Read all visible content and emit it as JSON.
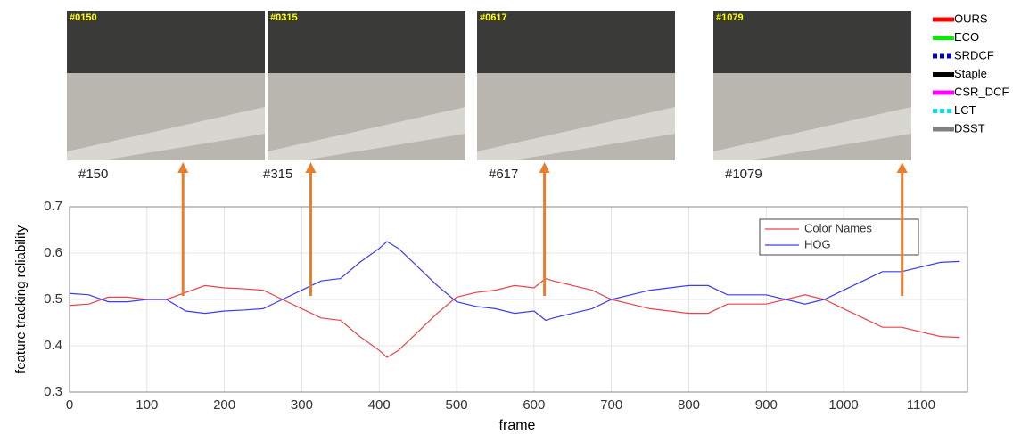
{
  "frames": [
    {
      "tag": "#0150",
      "caption": "#150"
    },
    {
      "tag": "#0315",
      "caption": "#315"
    },
    {
      "tag": "#0617",
      "caption": "#617"
    },
    {
      "tag": "#1079",
      "caption": "#1079"
    }
  ],
  "tracker_legend": [
    {
      "name": "OURS",
      "color": "#ff0000",
      "dashed": false
    },
    {
      "name": "ECO",
      "color": "#00ee00",
      "dashed": false
    },
    {
      "name": "SRDCF",
      "color": "#0000cc",
      "dashed": true
    },
    {
      "name": "Staple",
      "color": "#000000",
      "dashed": false
    },
    {
      "name": "CSR_DCF",
      "color": "#ff00ff",
      "dashed": false
    },
    {
      "name": "LCT",
      "color": "#00e5ee",
      "dashed": true
    },
    {
      "name": "DSST",
      "color": "#808080",
      "dashed": false
    }
  ],
  "chart_data": {
    "type": "line",
    "xlabel": "frame",
    "ylabel": "feature tracking reliability",
    "x": [
      0,
      25,
      50,
      75,
      100,
      125,
      150,
      175,
      200,
      225,
      250,
      275,
      300,
      325,
      350,
      375,
      400,
      410,
      425,
      450,
      475,
      500,
      525,
      550,
      575,
      600,
      615,
      625,
      650,
      675,
      700,
      725,
      750,
      775,
      800,
      825,
      850,
      875,
      900,
      925,
      950,
      975,
      1000,
      1025,
      1050,
      1075,
      1100,
      1125,
      1150
    ],
    "series": [
      {
        "name": "Color Names",
        "color": "#e8434b",
        "values": [
          0.487,
          0.49,
          0.505,
          0.505,
          0.5,
          0.5,
          0.515,
          0.53,
          0.525,
          0.523,
          0.52,
          0.5,
          0.48,
          0.46,
          0.455,
          0.42,
          0.39,
          0.375,
          0.39,
          0.43,
          0.47,
          0.505,
          0.515,
          0.52,
          0.53,
          0.525,
          0.545,
          0.54,
          0.53,
          0.52,
          0.5,
          0.49,
          0.48,
          0.475,
          0.47,
          0.47,
          0.49,
          0.49,
          0.49,
          0.5,
          0.51,
          0.5,
          0.48,
          0.46,
          0.44,
          0.44,
          0.43,
          0.42,
          0.418
        ]
      },
      {
        "name": "HOG",
        "color": "#3c3cf0",
        "values": [
          0.513,
          0.51,
          0.495,
          0.495,
          0.5,
          0.5,
          0.475,
          0.47,
          0.475,
          0.477,
          0.48,
          0.5,
          0.52,
          0.54,
          0.545,
          0.58,
          0.61,
          0.625,
          0.61,
          0.57,
          0.53,
          0.495,
          0.485,
          0.48,
          0.47,
          0.475,
          0.455,
          0.46,
          0.47,
          0.48,
          0.5,
          0.51,
          0.52,
          0.525,
          0.53,
          0.53,
          0.51,
          0.51,
          0.51,
          0.5,
          0.49,
          0.5,
          0.52,
          0.54,
          0.56,
          0.56,
          0.57,
          0.58,
          0.582
        ]
      }
    ],
    "xlim": [
      0,
      1160
    ],
    "ylim": [
      0.3,
      0.7
    ],
    "xticks": [
      0,
      100,
      200,
      300,
      400,
      500,
      600,
      700,
      800,
      900,
      1000,
      1100
    ],
    "yticks": [
      0.3,
      0.4,
      0.5,
      0.6,
      0.7
    ],
    "grid": true,
    "legend": "upper right",
    "annotation_frames": [
      150,
      315,
      617,
      1079
    ],
    "annotation_color": "#e87d2b"
  }
}
